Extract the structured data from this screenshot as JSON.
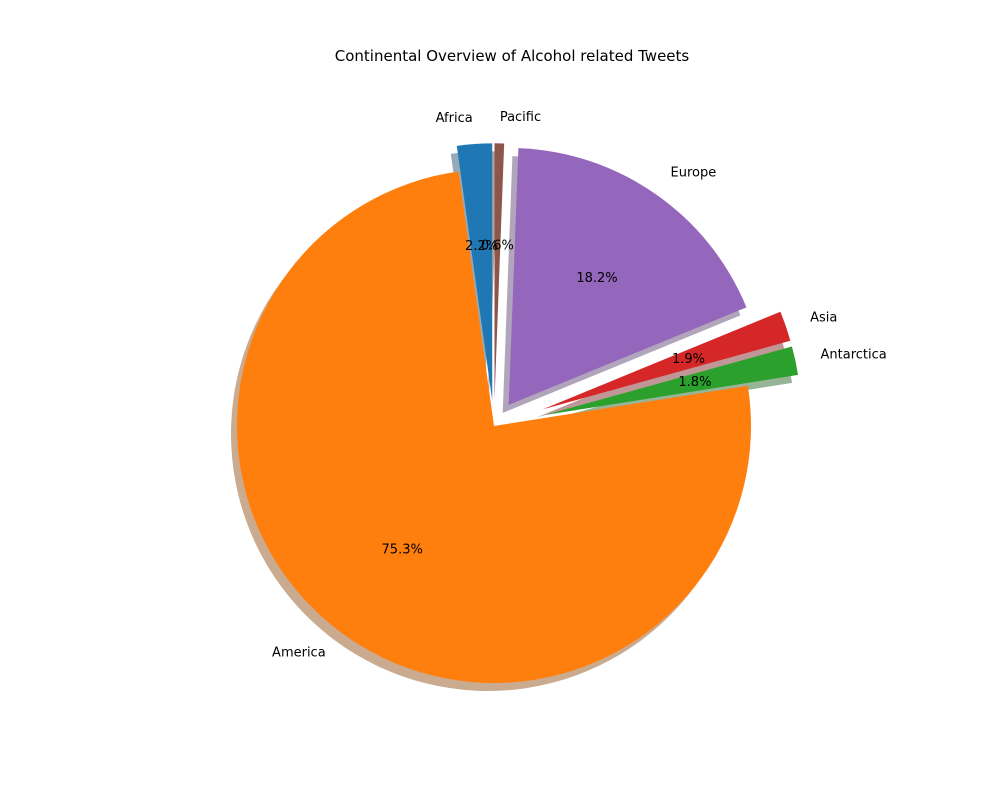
{
  "chart_data": {
    "type": "pie",
    "title": "Continental Overview of Alcohol related Tweets",
    "start_angle_deg": 90,
    "direction": "counterclockwise",
    "shadow": true,
    "slices": [
      {
        "label": "Africa",
        "value": 2.2,
        "pct_label": "2.2%",
        "color": "#1f77b4",
        "explode": 0.1
      },
      {
        "label": "America",
        "value": 75.3,
        "pct_label": "75.3%",
        "color": "#ff7f0e",
        "explode": 0.0
      },
      {
        "label": "Antarctica",
        "value": 1.8,
        "pct_label": "1.8%",
        "color": "#2ca02c",
        "explode": 0.2
      },
      {
        "label": "Asia",
        "value": 1.9,
        "pct_label": "1.9%",
        "color": "#d62728",
        "explode": 0.2
      },
      {
        "label": "Europe",
        "value": 18.2,
        "pct_label": "18.2%",
        "color": "#9467bd",
        "explode": 0.1
      },
      {
        "label": "Pacific",
        "value": 0.6,
        "pct_label": "0.6%",
        "color": "#8c564b",
        "explode": 0.1
      }
    ]
  }
}
